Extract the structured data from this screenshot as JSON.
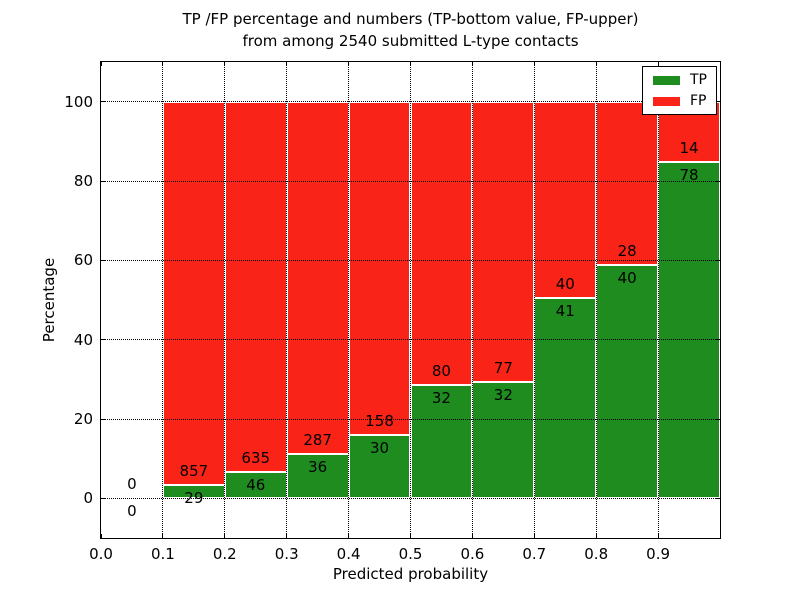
{
  "chart_data": {
    "type": "bar",
    "stacked": true,
    "title_line1": "TP /FP percentage and numbers (TP-bottom value, FP-upper)",
    "title_line2": "from among 2540 submitted L-type contacts",
    "xlabel": "Predicted probability",
    "ylabel": "Percentage",
    "xlim": [
      0.0,
      1.0
    ],
    "ylim": [
      -10,
      110
    ],
    "grid": "dotted",
    "legend_position": "upper right",
    "legend": [
      {
        "label": "TP",
        "color": "#1e8c1e"
      },
      {
        "label": "FP",
        "color": "#f92318"
      }
    ],
    "x_ticks": [
      {
        "v": 0.0,
        "label": "0.0"
      },
      {
        "v": 0.1,
        "label": "0.1"
      },
      {
        "v": 0.2,
        "label": "0.2"
      },
      {
        "v": 0.3,
        "label": "0.3"
      },
      {
        "v": 0.4,
        "label": "0.4"
      },
      {
        "v": 0.5,
        "label": "0.5"
      },
      {
        "v": 0.6,
        "label": "0.6"
      },
      {
        "v": 0.7,
        "label": "0.7"
      },
      {
        "v": 0.8,
        "label": "0.8"
      },
      {
        "v": 0.9,
        "label": "0.9"
      }
    ],
    "y_ticks": [
      {
        "v": 0,
        "label": "0"
      },
      {
        "v": 20,
        "label": "20"
      },
      {
        "v": 40,
        "label": "40"
      },
      {
        "v": 60,
        "label": "60"
      },
      {
        "v": 80,
        "label": "80"
      },
      {
        "v": 100,
        "label": "100"
      }
    ],
    "bins": [
      {
        "x_start": 0.0,
        "x_end": 0.1,
        "tp": 0,
        "fp": 0
      },
      {
        "x_start": 0.1,
        "x_end": 0.2,
        "tp": 29,
        "fp": 857
      },
      {
        "x_start": 0.2,
        "x_end": 0.3,
        "tp": 46,
        "fp": 635
      },
      {
        "x_start": 0.3,
        "x_end": 0.4,
        "tp": 36,
        "fp": 287
      },
      {
        "x_start": 0.4,
        "x_end": 0.5,
        "tp": 30,
        "fp": 158
      },
      {
        "x_start": 0.5,
        "x_end": 0.6,
        "tp": 32,
        "fp": 80
      },
      {
        "x_start": 0.6,
        "x_end": 0.7,
        "tp": 32,
        "fp": 77
      },
      {
        "x_start": 0.7,
        "x_end": 0.8,
        "tp": 41,
        "fp": 40
      },
      {
        "x_start": 0.8,
        "x_end": 0.9,
        "tp": 40,
        "fp": 28
      },
      {
        "x_start": 0.9,
        "x_end": 1.0,
        "tp": 78,
        "fp": 14
      }
    ],
    "total_submitted": 2540
  }
}
